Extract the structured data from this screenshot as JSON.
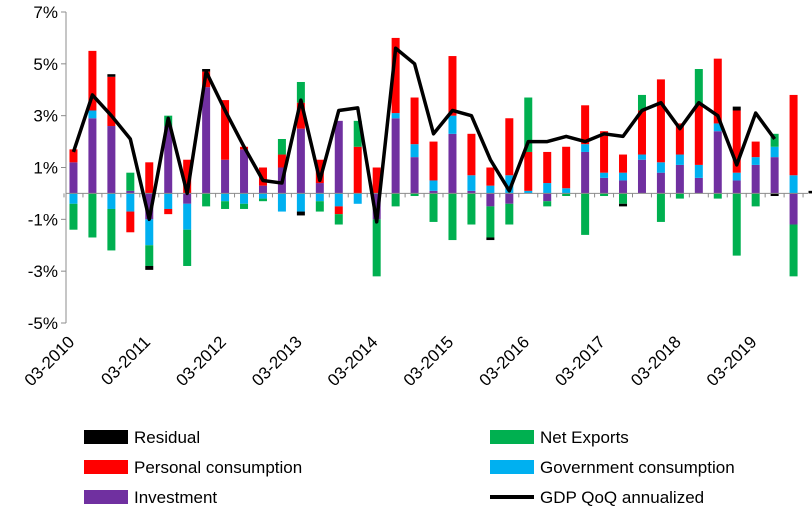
{
  "chart_data": {
    "type": "bar",
    "stacked": true,
    "ylim": [
      -5,
      7
    ],
    "y_ticks": [
      -5,
      -3,
      -1,
      1,
      3,
      5,
      7
    ],
    "y_tick_labels": [
      "-5%",
      "-3%",
      "-1%",
      "1%",
      "3%",
      "5%",
      "7%"
    ],
    "x_labels": [
      "03-2010",
      "03-2011",
      "03-2012",
      "03-2013",
      "03-2014",
      "03-2015",
      "03-2016",
      "03-2017",
      "03-2018",
      "03-2019"
    ],
    "grid": false,
    "legend_position": "bottom",
    "series": [
      {
        "name": "Residual",
        "color": "#000000",
        "values": [
          0,
          0,
          0.1,
          0,
          -0.15,
          0,
          0,
          0.1,
          0,
          0,
          0,
          0,
          -0.15,
          0,
          0,
          0,
          0,
          0,
          0,
          0,
          0,
          0,
          -0.1,
          0,
          0,
          0,
          0,
          0,
          0,
          -0.1,
          0,
          0,
          0,
          0,
          0,
          0.15,
          0,
          -0.1,
          0,
          0.1,
          0,
          0
        ]
      },
      {
        "name": "Net Exports",
        "color": "#00b050",
        "values": [
          -1.0,
          -1.7,
          -1.6,
          0.7,
          -0.8,
          0.4,
          -1.4,
          -0.5,
          -0.3,
          -0.2,
          -0.1,
          0.6,
          0.8,
          -0.4,
          -0.4,
          1.0,
          -2.2,
          -0.5,
          -0.1,
          -1.1,
          -1.8,
          -1.2,
          -1.2,
          -0.8,
          2.1,
          -0.2,
          -0.1,
          -1.6,
          -0.1,
          -0.4,
          0.6,
          -1.1,
          -0.2,
          1.4,
          -0.2,
          -2.4,
          -0.5,
          0.5,
          -2.0,
          0,
          0,
          0
        ]
      },
      {
        "name": "Personal consumption",
        "color": "#ff0000",
        "values": [
          0.5,
          2.3,
          1.9,
          -0.8,
          1.2,
          -0.2,
          1.3,
          0.6,
          2.3,
          0.1,
          0.7,
          0.5,
          1.0,
          0.9,
          -0.3,
          1.8,
          1.0,
          2.9,
          1.8,
          1.5,
          2.3,
          1.6,
          0.7,
          2.2,
          1.5,
          1.2,
          1.6,
          1.5,
          1.6,
          0.7,
          1.7,
          3.2,
          1.2,
          2.3,
          2.5,
          2.4,
          0.6,
          0,
          3.1,
          0,
          0,
          0
        ]
      },
      {
        "name": "Government consumption",
        "color": "#00b0f0",
        "values": [
          -0.4,
          0.3,
          -0.6,
          -0.7,
          -1.0,
          -0.6,
          -1.0,
          0,
          -0.3,
          -0.4,
          -0.2,
          -0.7,
          -0.7,
          -0.3,
          -0.5,
          -0.4,
          0,
          0.2,
          0.5,
          0.4,
          0.7,
          0.6,
          0.3,
          0.7,
          0.1,
          0.4,
          0.2,
          0.3,
          0.2,
          0.3,
          0.2,
          0.4,
          0.4,
          0.5,
          0.3,
          0.3,
          0.3,
          0.4,
          0.7,
          0,
          0,
          0
        ]
      },
      {
        "name": "Investment",
        "color": "#7030a0",
        "values": [
          1.2,
          2.9,
          2.6,
          0.1,
          -1.0,
          2.6,
          -0.4,
          4.1,
          1.3,
          1.7,
          0.3,
          1.0,
          2.5,
          0.4,
          2.8,
          0,
          -1.0,
          2.9,
          1.4,
          0.1,
          2.3,
          0.1,
          -0.5,
          -0.4,
          0,
          -0.3,
          0,
          1.6,
          0.6,
          0.5,
          1.3,
          0.8,
          1.1,
          0.6,
          2.4,
          0.5,
          1.1,
          1.4,
          -1.2,
          0,
          0,
          0
        ]
      }
    ],
    "line": {
      "name": "GDP QoQ annualized",
      "color": "#000000",
      "values": [
        1.6,
        3.8,
        3.0,
        2.1,
        -1.0,
        2.9,
        0,
        4.7,
        3.2,
        1.8,
        0.5,
        0.4,
        3.6,
        0.5,
        3.2,
        3.3,
        -1.1,
        5.6,
        5.0,
        2.3,
        3.2,
        3.0,
        1.3,
        0.1,
        2.0,
        2.0,
        2.2,
        2.0,
        2.3,
        2.2,
        3.2,
        3.5,
        2.5,
        3.5,
        3.0,
        1.1,
        3.1,
        2.1
      ]
    }
  },
  "legend": {
    "items": [
      {
        "label": "Residual",
        "color": "#000000",
        "kind": "bar"
      },
      {
        "label": "Net Exports",
        "color": "#00b050",
        "kind": "bar"
      },
      {
        "label": "Personal consumption",
        "color": "#ff0000",
        "kind": "bar"
      },
      {
        "label": "Government consumption",
        "color": "#00b0f0",
        "kind": "bar"
      },
      {
        "label": "Investment",
        "color": "#7030a0",
        "kind": "bar"
      },
      {
        "label": "GDP QoQ annualized",
        "color": "#000000",
        "kind": "line"
      }
    ]
  }
}
